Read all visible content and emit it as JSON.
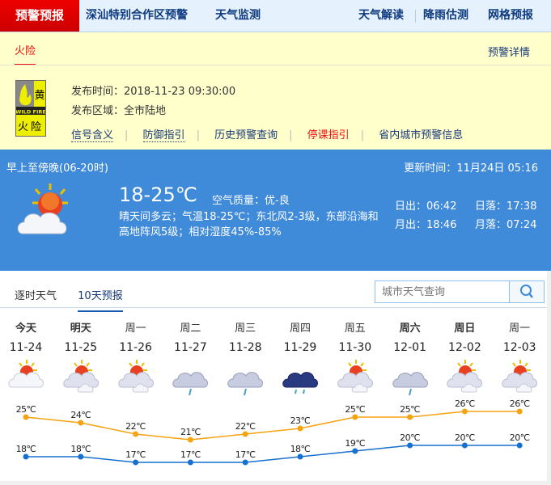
{
  "nav": {
    "brand": "预警预报",
    "items": [
      "深汕特别合作区预警",
      "天气监测",
      "天气解读",
      "降雨估测",
      "网格预报"
    ]
  },
  "warning": {
    "tab": "火险",
    "detail_link": "预警详情",
    "signal": {
      "level": "黄",
      "en": "WILD FIRE",
      "name": "火险",
      "color": "#eeee00"
    },
    "time_label": "发布时间：",
    "time": "2018-11-23 09:30:00",
    "area_label": "发布区域：",
    "area": "全市陆地",
    "links": [
      "信号含义",
      "防御指引",
      "历史预警查询",
      "停课指引",
      "省内城市预警信息"
    ]
  },
  "today": {
    "period": "早上至傍晚(06-20时)",
    "update_label": "更新时间：",
    "update": "11月24日 05:16",
    "temp": "18-25℃",
    "aqi_label": "空气质量：",
    "aqi": "优-良",
    "desc": "晴天间多云；气温18-25℃；东北风2-3级，东部沿海和高地阵风5级；相对湿度45%-85%",
    "sunrise": "日出：06:42",
    "sunset": "日落：17:38",
    "moonrise": "月出：18:46",
    "moonset": "月落：07:24",
    "icon": "sun-cloud-icon"
  },
  "forecast": {
    "tabs": [
      "逐时天气",
      "10天预报"
    ],
    "search_placeholder": "城市天气查询",
    "days": [
      {
        "day": "今天",
        "date": "11-24",
        "icon": "sun-cloud",
        "high": "25℃",
        "low": "18℃"
      },
      {
        "day": "明天",
        "date": "11-25",
        "icon": "partly-cloudy",
        "high": "24℃",
        "low": "18℃"
      },
      {
        "day": "周一",
        "date": "11-26",
        "icon": "partly-cloudy",
        "high": "22℃",
        "low": "17℃"
      },
      {
        "day": "周二",
        "date": "11-27",
        "icon": "light-rain",
        "high": "21℃",
        "low": "17℃"
      },
      {
        "day": "周三",
        "date": "11-28",
        "icon": "light-rain",
        "high": "22℃",
        "low": "17℃"
      },
      {
        "day": "周四",
        "date": "11-29",
        "icon": "rain",
        "high": "23℃",
        "low": "18℃"
      },
      {
        "day": "周五",
        "date": "11-30",
        "icon": "partly-cloudy",
        "high": "25℃",
        "low": "19℃"
      },
      {
        "day": "周六",
        "date": "12-01",
        "icon": "light-rain",
        "high": "25℃",
        "low": "20℃"
      },
      {
        "day": "周日",
        "date": "12-02",
        "icon": "partly-cloudy",
        "high": "26℃",
        "low": "20℃"
      },
      {
        "day": "周一",
        "date": "12-03",
        "icon": "partly-cloudy",
        "high": "26℃",
        "low": "20℃"
      }
    ],
    "colors": {
      "high": "#f5a310",
      "low": "#1670d0"
    }
  },
  "chart_data": {
    "type": "line",
    "categories": [
      "11-24",
      "11-25",
      "11-26",
      "11-27",
      "11-28",
      "11-29",
      "11-30",
      "12-01",
      "12-02",
      "12-03"
    ],
    "series": [
      {
        "values": [
          25,
          24,
          22,
          21,
          22,
          23,
          25,
          25,
          26,
          26
        ]
      },
      {
        "values": [
          18,
          18,
          17,
          17,
          17,
          18,
          19,
          20,
          20,
          20
        ]
      }
    ]
  }
}
